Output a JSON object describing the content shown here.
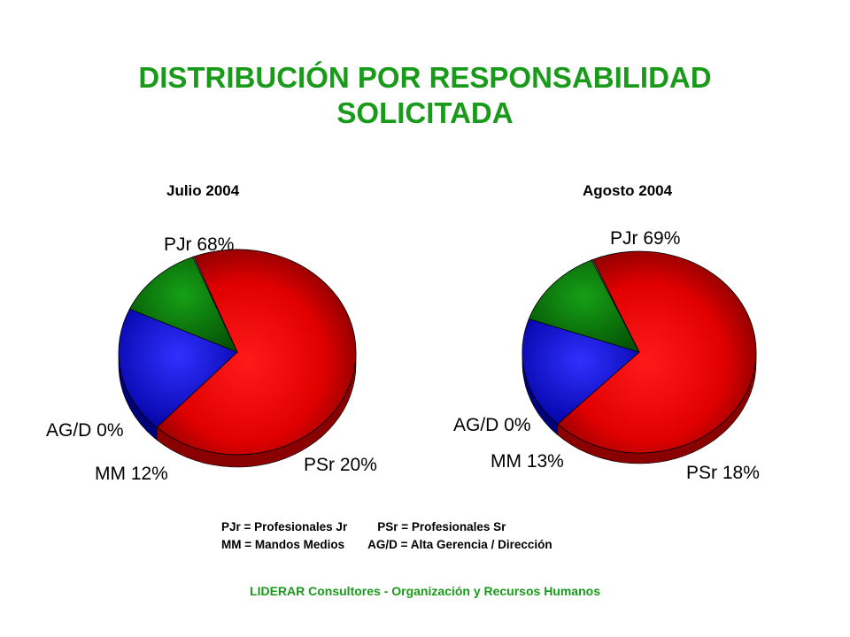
{
  "title_line1": "DISTRIBUCIÓN POR RESPONSABILIDAD",
  "title_line2": "SOLICITADA",
  "legend": {
    "row1_a": "PJr = Profesionales Jr",
    "row1_b": "PSr = Profesionales Sr",
    "row2_a": "MM = Mandos Medios",
    "row2_b": "AG/D = Alta Gerencia / Dirección"
  },
  "footer": "LIDERAR Consultores - Organización y Recursos Humanos",
  "colors": {
    "PJr": "#e00000",
    "PSr": "#1010ee",
    "MM": "#0a8a0a",
    "AG/D": "#c8c8c8",
    "title": "#1a9a1a"
  },
  "chart_data": [
    {
      "type": "pie",
      "title": "Julio 2004",
      "categories": [
        "PJr",
        "PSr",
        "MM",
        "AG/D"
      ],
      "values": [
        68,
        20,
        12,
        0
      ],
      "labels": [
        "PJr 68%",
        "PSr 20%",
        "MM 12%",
        "AG/D 0%"
      ]
    },
    {
      "type": "pie",
      "title": "Agosto 2004",
      "categories": [
        "PJr",
        "PSr",
        "MM",
        "AG/D"
      ],
      "values": [
        69,
        18,
        13,
        0
      ],
      "labels": [
        "PJr 69%",
        "PSr 18%",
        "MM 13%",
        "AG/D 0%"
      ]
    }
  ]
}
